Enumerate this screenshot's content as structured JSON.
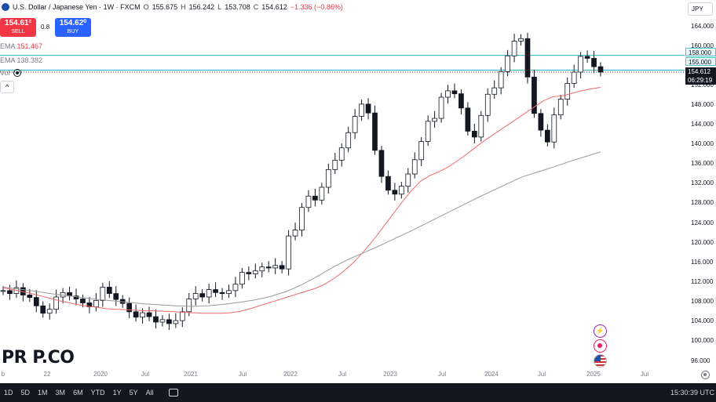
{
  "header": {
    "symbol_title": "U.S. Dollar / Japanese Yen · 1W · FXCM",
    "ohlc": {
      "open_label": "O",
      "open": "155.675",
      "high_label": "H",
      "high": "156.242",
      "low_label": "L",
      "low": "153.708",
      "close_label": "C",
      "close": "154.612",
      "change": "−1.336 (−0.86%)"
    }
  },
  "trade": {
    "sell_price": "154.61²",
    "sell_label": "SELL",
    "spread": "0.8",
    "buy_price": "154.62⁰",
    "buy_label": "BUY"
  },
  "indicators": {
    "ema1_label": "EMA",
    "ema1_value": "151.467",
    "ema2_label": "EMA",
    "ema2_value": "138.382",
    "vol_label": "Vol"
  },
  "collapse_glyph": "^",
  "price_axis": {
    "currency": "JPY",
    "ticks": [
      "164.000",
      "160.000",
      "152.000",
      "148.000",
      "144.000",
      "140.000",
      "136.000",
      "132.000",
      "128.000",
      "124.000",
      "120.000",
      "116.000",
      "112.000",
      "108.000",
      "104.000",
      "100.000",
      "96.000"
    ],
    "tags": {
      "line1": "158.000",
      "line2": "155.000",
      "current_price": "154.612",
      "countdown": "06:29:19"
    }
  },
  "time_axis": {
    "labels": [
      "b",
      "22",
      "2020",
      "Jul",
      "2021",
      "Jul",
      "2022",
      "Jul",
      "2023",
      "Jul",
      "2024",
      "Jul",
      "2025",
      "Jul"
    ]
  },
  "logo_text": "PR   P.CO",
  "bottom_bar": {
    "ranges": [
      "1D",
      "5D",
      "1M",
      "3M",
      "6M",
      "YTD",
      "1Y",
      "5Y",
      "All"
    ],
    "clock": "15:30:39 UTC"
  },
  "colors": {
    "up": "#131722",
    "down": "#131722",
    "ema_fast": "#f26a6a",
    "ema_slow": "#9a9a9a",
    "hline": "#26b6c9"
  },
  "chart_data": {
    "type": "candlestick",
    "title": "U.S. Dollar / Japanese Yen · 1W · FXCM",
    "ylim": [
      96,
      165
    ],
    "hlines": [
      158.0,
      155.0,
      154.612
    ],
    "close_series": [
      110.2,
      109.6,
      110.8,
      109.3,
      108.8,
      107.1,
      105.6,
      106.4,
      108.9,
      109.8,
      109.1,
      108.5,
      107.7,
      106.9,
      108.2,
      110.9,
      109.6,
      108.4,
      107.6,
      105.9,
      104.8,
      105.7,
      104.9,
      103.8,
      104.3,
      103.5,
      104.1,
      105.9,
      108.5,
      109.6,
      108.9,
      110.4,
      109.8,
      109.6,
      110.2,
      111.5,
      113.9,
      113.6,
      114.2,
      115.0,
      114.8,
      115.3,
      114.6,
      121.3,
      122.5,
      127.1,
      129.4,
      128.6,
      131.2,
      134.8,
      136.7,
      139.2,
      142.3,
      145.6,
      148.1,
      146.3,
      138.7,
      133.4,
      130.6,
      129.8,
      131.4,
      133.9,
      136.8,
      140.5,
      144.6,
      145.2,
      149.5,
      150.8,
      150.2,
      147.3,
      142.6,
      141.4,
      145.8,
      150.1,
      151.4,
      154.7,
      157.9,
      160.9,
      161.4,
      153.6,
      146.2,
      142.8,
      140.4,
      145.9,
      149.1,
      152.3,
      154.6,
      157.8,
      157.4,
      155.7,
      154.6
    ],
    "ema_fast_series": [
      110.8,
      110.4,
      110.0,
      109.6,
      109.1,
      108.6,
      108.1,
      107.7,
      107.3,
      107.0,
      106.8,
      106.5,
      106.4,
      106.3,
      106.2,
      106.1,
      106.1,
      106.0,
      105.9,
      105.8,
      105.7,
      105.6,
      105.6,
      105.6,
      105.7,
      106.0,
      106.5,
      107.1,
      107.7,
      108.3,
      108.9,
      109.5,
      110.1,
      110.7,
      111.6,
      112.8,
      114.3,
      116.0,
      118.1,
      120.4,
      122.9,
      125.5,
      128.0,
      130.4,
      132.4,
      133.6,
      134.4,
      135.4,
      136.7,
      138.1,
      139.6,
      141.0,
      142.3,
      143.6,
      144.9,
      146.2,
      147.5,
      148.8,
      149.6,
      149.8,
      150.3,
      150.8,
      151.2,
      151.5
    ],
    "ema_slow_series": [
      110.9,
      110.5,
      110.1,
      109.6,
      109.2,
      108.8,
      108.4,
      108.1,
      107.8,
      107.5,
      107.3,
      107.1,
      107.0,
      107.1,
      107.4,
      107.8,
      108.3,
      109.0,
      110.0,
      111.4,
      113.1,
      115.0,
      116.6,
      118.0,
      119.4,
      120.9,
      122.4,
      124.0,
      125.6,
      127.2,
      128.8,
      130.3,
      131.8,
      133.3,
      134.3,
      135.3,
      136.4,
      137.4,
      138.4
    ]
  }
}
